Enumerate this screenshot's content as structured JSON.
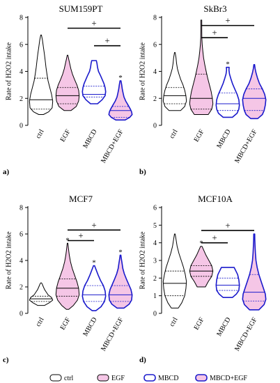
{
  "chart_data": [
    {
      "type": "violin",
      "panel_label": "a)",
      "title": "SUM159PT",
      "ylabel": "Rate of H2O2 intake",
      "ylim": [
        0,
        8
      ],
      "yticks": [
        "0",
        "2",
        "4",
        "6",
        "8"
      ],
      "categories": [
        "ctrl",
        "EGF",
        "MBCD",
        "MBCD+EGF"
      ],
      "series": [
        {
          "category": "ctrl",
          "min": 0.8,
          "max": 6.7,
          "median": 1.9,
          "q1": 1.2,
          "q3": 3.5,
          "shape": [
            [
              0.8,
              0.2
            ],
            [
              1.0,
              0.65
            ],
            [
              1.3,
              0.95
            ],
            [
              1.8,
              1.0
            ],
            [
              2.3,
              0.9
            ],
            [
              2.8,
              0.75
            ],
            [
              3.3,
              0.6
            ],
            [
              3.8,
              0.5
            ],
            [
              4.3,
              0.42
            ],
            [
              4.8,
              0.35
            ],
            [
              5.3,
              0.28
            ],
            [
              5.8,
              0.2
            ],
            [
              6.3,
              0.12
            ],
            [
              6.7,
              0.03
            ]
          ]
        },
        {
          "category": "EGF",
          "min": 1.1,
          "max": 5.2,
          "median": 2.2,
          "q1": 1.6,
          "q3": 2.8,
          "star": false,
          "shape": [
            [
              1.1,
              0.3
            ],
            [
              1.4,
              0.75
            ],
            [
              1.8,
              0.95
            ],
            [
              2.2,
              1.0
            ],
            [
              2.6,
              0.95
            ],
            [
              3.0,
              0.8
            ],
            [
              3.4,
              0.6
            ],
            [
              3.8,
              0.42
            ],
            [
              4.2,
              0.28
            ],
            [
              4.6,
              0.18
            ],
            [
              4.9,
              0.1
            ],
            [
              5.2,
              0.03
            ]
          ]
        },
        {
          "category": "MBCD",
          "min": 1.6,
          "max": 4.8,
          "median": 2.3,
          "q1": 2.1,
          "q3": 2.9,
          "shape": [
            [
              1.6,
              0.3
            ],
            [
              1.9,
              0.7
            ],
            [
              2.2,
              0.95
            ],
            [
              2.5,
              1.0
            ],
            [
              2.8,
              0.95
            ],
            [
              3.1,
              0.85
            ],
            [
              3.4,
              0.7
            ],
            [
              3.7,
              0.55
            ],
            [
              4.0,
              0.38
            ],
            [
              4.3,
              0.3
            ],
            [
              4.6,
              0.25
            ],
            [
              4.8,
              0.2
            ]
          ]
        },
        {
          "category": "MBCD+EGF",
          "min": 0.4,
          "max": 3.3,
          "median": 1.1,
          "q1": 0.6,
          "q3": 1.4,
          "star": true,
          "shape": [
            [
              0.4,
              0.4
            ],
            [
              0.6,
              0.8
            ],
            [
              0.8,
              1.0
            ],
            [
              1.0,
              0.95
            ],
            [
              1.2,
              0.85
            ],
            [
              1.5,
              0.65
            ],
            [
              1.8,
              0.45
            ],
            [
              2.1,
              0.3
            ],
            [
              2.4,
              0.22
            ],
            [
              2.7,
              0.15
            ],
            [
              3.0,
              0.1
            ],
            [
              3.3,
              0.04
            ]
          ]
        }
      ],
      "annotations": [
        {
          "label": "+",
          "from": "EGF",
          "to": "MBCD+EGF",
          "y": 7.2
        },
        {
          "label": "+",
          "from": "MBCD",
          "to": "MBCD+EGF",
          "y": 5.9
        }
      ]
    },
    {
      "type": "violin",
      "panel_label": "b)",
      "title": "SkBr3",
      "ylabel": "Rate of H2O2 intake",
      "ylim": [
        0,
        8
      ],
      "yticks": [
        "0",
        "2",
        "4",
        "6",
        "8"
      ],
      "categories": [
        "ctrl",
        "EGF",
        "MBCD",
        "MBCD+EGF"
      ],
      "series": [
        {
          "category": "ctrl",
          "min": 1.1,
          "max": 5.4,
          "median": 2.2,
          "q1": 1.6,
          "q3": 2.8,
          "shape": [
            [
              1.1,
              0.5
            ],
            [
              1.4,
              0.85
            ],
            [
              1.8,
              1.0
            ],
            [
              2.2,
              0.95
            ],
            [
              2.6,
              0.85
            ],
            [
              3.0,
              0.7
            ],
            [
              3.4,
              0.5
            ],
            [
              3.8,
              0.35
            ],
            [
              4.2,
              0.22
            ],
            [
              4.6,
              0.15
            ],
            [
              5.0,
              0.1
            ],
            [
              5.4,
              0.03
            ]
          ]
        },
        {
          "category": "EGF",
          "min": 0.8,
          "max": 7.8,
          "median": 2.0,
          "q1": 1.2,
          "q3": 3.8,
          "shape": [
            [
              0.8,
              0.6
            ],
            [
              1.2,
              0.9
            ],
            [
              1.6,
              1.0
            ],
            [
              2.0,
              0.95
            ],
            [
              2.5,
              0.85
            ],
            [
              3.0,
              0.7
            ],
            [
              3.5,
              0.55
            ],
            [
              4.0,
              0.42
            ],
            [
              4.5,
              0.3
            ],
            [
              5.0,
              0.2
            ],
            [
              5.5,
              0.13
            ],
            [
              6.0,
              0.08
            ],
            [
              6.5,
              0.05
            ],
            [
              7.0,
              0.04
            ],
            [
              7.8,
              0.04
            ]
          ]
        },
        {
          "category": "MBCD",
          "min": 0.6,
          "max": 4.3,
          "median": 1.6,
          "q1": 1.1,
          "q3": 2.4,
          "star": true,
          "shape": [
            [
              0.6,
              0.4
            ],
            [
              0.9,
              0.8
            ],
            [
              1.2,
              0.95
            ],
            [
              1.5,
              1.0
            ],
            [
              1.9,
              0.95
            ],
            [
              2.3,
              0.8
            ],
            [
              2.7,
              0.6
            ],
            [
              3.1,
              0.4
            ],
            [
              3.5,
              0.25
            ],
            [
              3.8,
              0.15
            ],
            [
              4.1,
              0.1
            ],
            [
              4.3,
              0.12
            ]
          ]
        },
        {
          "category": "MBCD+EGF",
          "min": 0.5,
          "max": 4.5,
          "median": 2.0,
          "q1": 1.1,
          "q3": 2.7,
          "shape": [
            [
              0.5,
              0.3
            ],
            [
              0.8,
              0.7
            ],
            [
              1.1,
              0.85
            ],
            [
              1.5,
              0.95
            ],
            [
              1.9,
              1.0
            ],
            [
              2.3,
              0.9
            ],
            [
              2.7,
              0.7
            ],
            [
              3.1,
              0.45
            ],
            [
              3.5,
              0.28
            ],
            [
              3.9,
              0.15
            ],
            [
              4.2,
              0.08
            ],
            [
              4.5,
              0.03
            ]
          ]
        }
      ],
      "annotations": [
        {
          "label": "+",
          "from": "EGF",
          "to": "MBCD+EGF",
          "y": 7.4
        },
        {
          "label": "+",
          "from": "EGF",
          "to": "MBCD",
          "y": 6.5
        }
      ]
    },
    {
      "type": "violin",
      "panel_label": "c)",
      "title": "MCF7",
      "ylabel": "Rate of H2O2 intake",
      "ylim": [
        0,
        8
      ],
      "yticks": [
        "0",
        "2",
        "4",
        "6",
        "8"
      ],
      "categories": [
        "ctrl",
        "EGF",
        "MBCD",
        "MBCD+EGF"
      ],
      "series": [
        {
          "category": "ctrl",
          "min": 0.6,
          "max": 2.3,
          "median": 1.1,
          "q1": 0.9,
          "q3": 1.3,
          "shape": [
            [
              0.6,
              0.3
            ],
            [
              0.8,
              0.7
            ],
            [
              1.0,
              1.0
            ],
            [
              1.2,
              0.9
            ],
            [
              1.4,
              0.6
            ],
            [
              1.6,
              0.45
            ],
            [
              1.8,
              0.3
            ],
            [
              2.0,
              0.2
            ],
            [
              2.2,
              0.1
            ],
            [
              2.3,
              0.04
            ]
          ]
        },
        {
          "category": "EGF",
          "min": 0.3,
          "max": 5.3,
          "median": 1.9,
          "q1": 1.3,
          "q3": 2.6,
          "star": true,
          "shape": [
            [
              0.3,
              0.1
            ],
            [
              0.6,
              0.5
            ],
            [
              1.0,
              0.85
            ],
            [
              1.4,
              1.0
            ],
            [
              1.9,
              0.95
            ],
            [
              2.4,
              0.8
            ],
            [
              2.9,
              0.6
            ],
            [
              3.4,
              0.4
            ],
            [
              3.9,
              0.25
            ],
            [
              4.4,
              0.15
            ],
            [
              4.9,
              0.08
            ],
            [
              5.3,
              0.03
            ]
          ]
        },
        {
          "category": "MBCD",
          "min": 0.2,
          "max": 3.6,
          "median": 1.4,
          "q1": 0.9,
          "q3": 2.1,
          "star": true,
          "shape": [
            [
              0.2,
              0.15
            ],
            [
              0.5,
              0.6
            ],
            [
              0.9,
              0.9
            ],
            [
              1.3,
              1.0
            ],
            [
              1.7,
              0.95
            ],
            [
              2.1,
              0.8
            ],
            [
              2.5,
              0.55
            ],
            [
              2.9,
              0.35
            ],
            [
              3.2,
              0.22
            ],
            [
              3.6,
              0.05
            ]
          ]
        },
        {
          "category": "MBCD+EGF",
          "min": 0.4,
          "max": 4.4,
          "median": 1.4,
          "q1": 0.9,
          "q3": 2.1,
          "star": true,
          "shape": [
            [
              0.4,
              0.3
            ],
            [
              0.7,
              0.75
            ],
            [
              1.0,
              0.95
            ],
            [
              1.4,
              1.0
            ],
            [
              1.8,
              0.9
            ],
            [
              2.2,
              0.7
            ],
            [
              2.6,
              0.5
            ],
            [
              3.0,
              0.32
            ],
            [
              3.4,
              0.2
            ],
            [
              3.8,
              0.13
            ],
            [
              4.1,
              0.08
            ],
            [
              4.4,
              0.03
            ]
          ]
        }
      ],
      "annotations": [
        {
          "label": "+",
          "from": "EGF",
          "to": "MBCD+EGF",
          "y": 6.3
        },
        {
          "label": "+",
          "from": "EGF",
          "to": "MBCD",
          "y": 5.5
        }
      ]
    },
    {
      "type": "violin",
      "panel_label": "d)",
      "title": "MCF10A",
      "ylabel": "Rate of H2O2 intake",
      "ylim": [
        0,
        6
      ],
      "yticks": [
        "0",
        "1",
        "2",
        "3",
        "4",
        "5",
        "6"
      ],
      "categories": [
        "ctrl",
        "EGF",
        "MBCD",
        "MBCD+EGF"
      ],
      "series": [
        {
          "category": "ctrl",
          "min": 0.3,
          "max": 4.5,
          "median": 1.7,
          "q1": 1.0,
          "q3": 2.4,
          "shape": [
            [
              0.3,
              0.3
            ],
            [
              0.6,
              0.6
            ],
            [
              1.0,
              0.85
            ],
            [
              1.4,
              0.95
            ],
            [
              1.8,
              1.0
            ],
            [
              2.2,
              0.9
            ],
            [
              2.6,
              0.75
            ],
            [
              3.0,
              0.55
            ],
            [
              3.4,
              0.35
            ],
            [
              3.8,
              0.2
            ],
            [
              4.2,
              0.1
            ],
            [
              4.5,
              0.03
            ]
          ]
        },
        {
          "category": "EGF",
          "min": 1.5,
          "max": 3.8,
          "median": 2.4,
          "q1": 2.1,
          "q3": 2.7,
          "star": true,
          "shape": [
            [
              1.5,
              0.35
            ],
            [
              1.8,
              0.6
            ],
            [
              2.1,
              0.9
            ],
            [
              2.4,
              1.0
            ],
            [
              2.7,
              0.9
            ],
            [
              3.0,
              0.65
            ],
            [
              3.3,
              0.4
            ],
            [
              3.6,
              0.2
            ],
            [
              3.8,
              0.06
            ]
          ]
        },
        {
          "category": "MBCD",
          "min": 0.9,
          "max": 2.6,
          "median": 1.6,
          "q1": 1.3,
          "q3": 2.0,
          "shape": [
            [
              0.9,
              0.4
            ],
            [
              1.1,
              0.75
            ],
            [
              1.3,
              0.95
            ],
            [
              1.6,
              1.0
            ],
            [
              1.9,
              0.95
            ],
            [
              2.2,
              0.85
            ],
            [
              2.4,
              0.7
            ],
            [
              2.6,
              0.55
            ]
          ]
        },
        {
          "category": "MBCD+EGF",
          "min": 0.2,
          "max": 4.5,
          "median": 1.2,
          "q1": 0.7,
          "q3": 2.2,
          "shape": [
            [
              0.2,
              0.4
            ],
            [
              0.5,
              0.85
            ],
            [
              0.8,
              1.0
            ],
            [
              1.1,
              0.95
            ],
            [
              1.4,
              0.8
            ],
            [
              1.8,
              0.6
            ],
            [
              2.2,
              0.4
            ],
            [
              2.6,
              0.25
            ],
            [
              3.0,
              0.15
            ],
            [
              3.4,
              0.1
            ],
            [
              3.8,
              0.07
            ],
            [
              4.2,
              0.05
            ],
            [
              4.5,
              0.04
            ]
          ]
        }
      ],
      "annotations": [
        {
          "label": "+",
          "from": "EGF",
          "to": "MBCD+EGF",
          "y": 4.7
        },
        {
          "label": "+",
          "from": "EGF",
          "to": "MBCD",
          "y": 4.0
        }
      ]
    }
  ],
  "legend": [
    {
      "label": "ctrl",
      "fill": "#ffffff",
      "stroke": "#000000"
    },
    {
      "label": "EGF",
      "fill": "#f5c6e6",
      "stroke": "#000000"
    },
    {
      "label": "MBCD",
      "fill": "#ffffff",
      "stroke": "#1a1acc"
    },
    {
      "label": "MBCD+EGF",
      "fill": "#f5c6e6",
      "stroke": "#1a1acc"
    }
  ],
  "colors": {
    "black": "#000000",
    "pink": "#f5c6e6",
    "blue": "#1a1acc"
  },
  "star_symbol": "*"
}
